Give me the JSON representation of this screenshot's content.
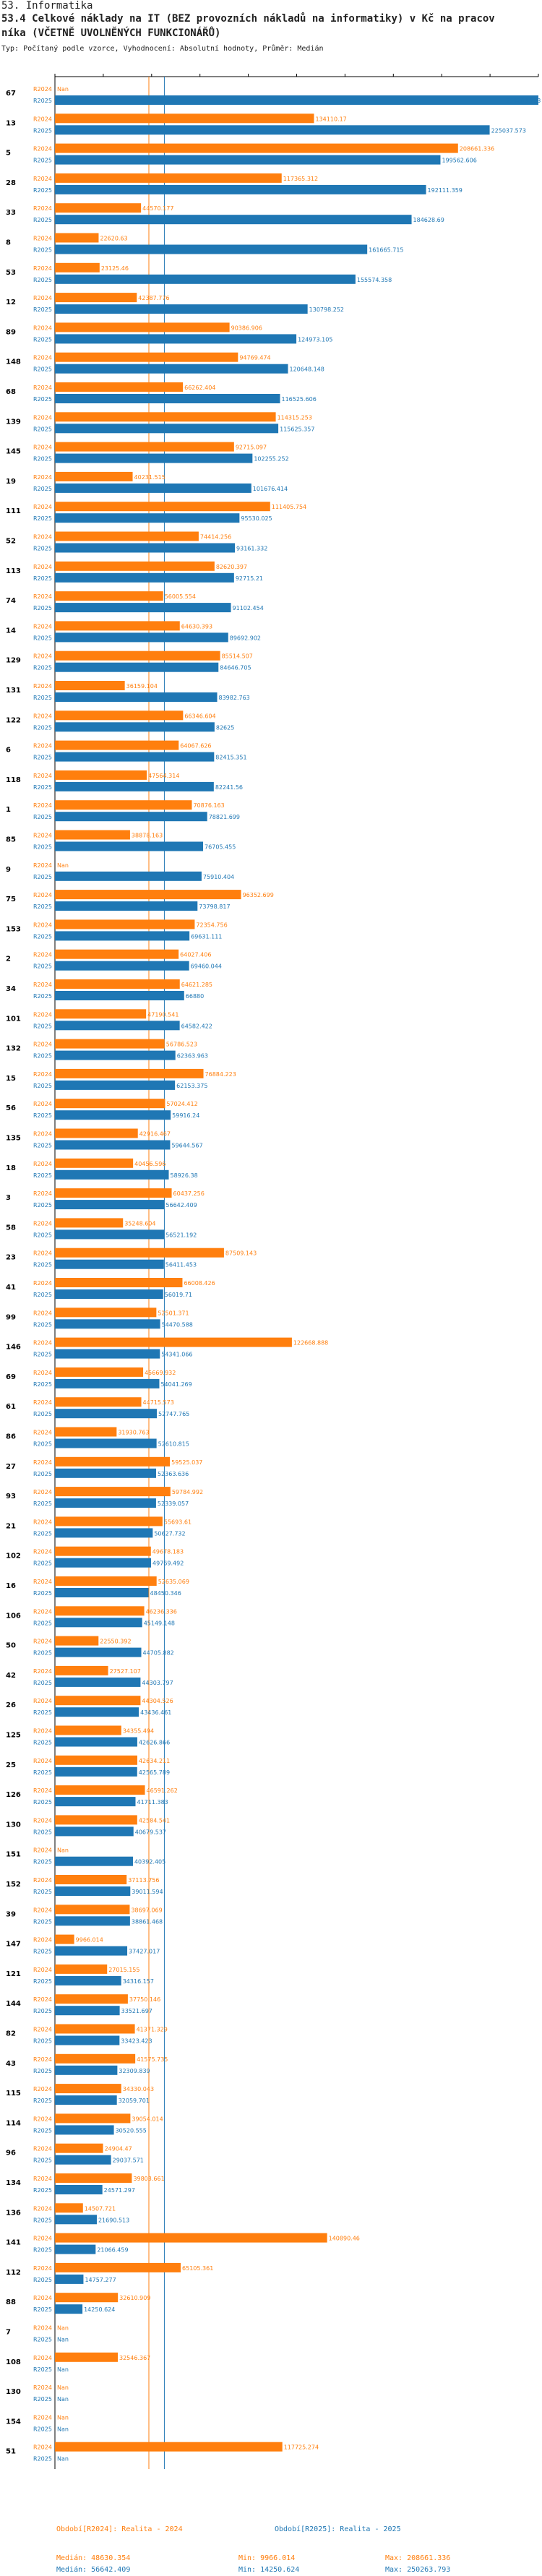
{
  "header": {
    "line1": "53. Informatika",
    "line2": "53.4 Celkové náklady na IT (BEZ provozních nákladů na informatiky) v Kč na pracov",
    "line3": "níka (VČETNĚ UVOLNĚNÝCH FUNKCIONÁŘŮ)",
    "line4": "Typ: Počítaný podle vzorce, Vyhodnocení: Absolutní hodnoty, Průměr: Medián"
  },
  "colors": {
    "r2024": "#ff7f0e",
    "r2025": "#1f77b4",
    "axis": "#000000",
    "medianLine": "#1f77b4"
  },
  "chart_data": {
    "type": "bar",
    "orientation": "horizontal",
    "xlim": [
      0,
      250263.793
    ],
    "series_labels": [
      "R2024",
      "R2025"
    ],
    "na_label": "Nan",
    "groups": [
      {
        "id": "67",
        "v2024": null,
        "v2025": 250263.793,
        "l2024": "Nan",
        "l2025": "250263.793"
      },
      {
        "id": "13",
        "v2024": 134110.17,
        "v2025": 225037.573,
        "l2024": "134110.17",
        "l2025": "225037.573"
      },
      {
        "id": "5",
        "v2024": 208661.336,
        "v2025": 199562.606,
        "l2024": "208661.336",
        "l2025": "199562.606"
      },
      {
        "id": "28",
        "v2024": 117365.312,
        "v2025": 192111.359,
        "l2024": "117365.312",
        "l2025": "192111.359"
      },
      {
        "id": "33",
        "v2024": 44570.177,
        "v2025": 184628.69,
        "l2024": "44570.177",
        "l2025": "184628.69"
      },
      {
        "id": "8",
        "v2024": 22620.63,
        "v2025": 161665.715,
        "l2024": "22620.63",
        "l2025": "161665.715"
      },
      {
        "id": "53",
        "v2024": 23125.46,
        "v2025": 155574.358,
        "l2024": "23125.46",
        "l2025": "155574.358"
      },
      {
        "id": "12",
        "v2024": 42387.776,
        "v2025": 130798.252,
        "l2024": "42387.776",
        "l2025": "130798.252"
      },
      {
        "id": "89",
        "v2024": 90386.906,
        "v2025": 124973.105,
        "l2024": "90386.906",
        "l2025": "124973.105"
      },
      {
        "id": "148",
        "v2024": 94769.474,
        "v2025": 120648.148,
        "l2024": "94769.474",
        "l2025": "120648.148"
      },
      {
        "id": "68",
        "v2024": 66262.404,
        "v2025": 116525.606,
        "l2024": "66262.404",
        "l2025": "116525.606"
      },
      {
        "id": "139",
        "v2024": 114315.253,
        "v2025": 115625.357,
        "l2024": "114315.253",
        "l2025": "115625.357"
      },
      {
        "id": "145",
        "v2024": 92715.097,
        "v2025": 102255.252,
        "l2024": "92715.097",
        "l2025": "102255.252"
      },
      {
        "id": "19",
        "v2024": 40231.515,
        "v2025": 101676.414,
        "l2024": "40231.515",
        "l2025": "101676.414"
      },
      {
        "id": "111",
        "v2024": 111405.754,
        "v2025": 95530.025,
        "l2024": "111405.754",
        "l2025": "95530.025"
      },
      {
        "id": "52",
        "v2024": 74414.256,
        "v2025": 93161.332,
        "l2024": "74414.256",
        "l2025": "93161.332"
      },
      {
        "id": "113",
        "v2024": 82620.397,
        "v2025": 92715.21,
        "l2024": "82620.397",
        "l2025": "92715.21"
      },
      {
        "id": "74",
        "v2024": 56005.554,
        "v2025": 91102.454,
        "l2024": "56005.554",
        "l2025": "91102.454"
      },
      {
        "id": "14",
        "v2024": 64630.393,
        "v2025": 89692.902,
        "l2024": "64630.393",
        "l2025": "89692.902"
      },
      {
        "id": "129",
        "v2024": 85514.507,
        "v2025": 84646.705,
        "l2024": "85514.507",
        "l2025": "84646.705"
      },
      {
        "id": "131",
        "v2024": 36159.104,
        "v2025": 83982.763,
        "l2024": "36159.104",
        "l2025": "83982.763"
      },
      {
        "id": "122",
        "v2024": 66346.604,
        "v2025": 82625,
        "l2024": "66346.604",
        "l2025": "82625"
      },
      {
        "id": "6",
        "v2024": 64067.626,
        "v2025": 82415.351,
        "l2024": "64067.626",
        "l2025": "82415.351"
      },
      {
        "id": "118",
        "v2024": 47564.314,
        "v2025": 82241.56,
        "l2024": "47564.314",
        "l2025": "82241.56"
      },
      {
        "id": "1",
        "v2024": 70876.163,
        "v2025": 78821.699,
        "l2024": "70876.163",
        "l2025": "78821.699"
      },
      {
        "id": "85",
        "v2024": 38878.163,
        "v2025": 76705.455,
        "l2024": "38878.163",
        "l2025": "76705.455"
      },
      {
        "id": "9",
        "v2024": null,
        "v2025": 75910.404,
        "l2024": "Nan",
        "l2025": "75910.404"
      },
      {
        "id": "75",
        "v2024": 96352.699,
        "v2025": 73798.817,
        "l2024": "96352.699",
        "l2025": "73798.817"
      },
      {
        "id": "153",
        "v2024": 72354.756,
        "v2025": 69631.111,
        "l2024": "72354.756",
        "l2025": "69631.111"
      },
      {
        "id": "2",
        "v2024": 64027.406,
        "v2025": 69460.044,
        "l2024": "64027.406",
        "l2025": "69460.044"
      },
      {
        "id": "34",
        "v2024": 64621.285,
        "v2025": 66880,
        "l2024": "64621.285",
        "l2025": "66880"
      },
      {
        "id": "101",
        "v2024": 47190.541,
        "v2025": 64582.422,
        "l2024": "47190.541",
        "l2025": "64582.422"
      },
      {
        "id": "132",
        "v2024": 56786.523,
        "v2025": 62363.963,
        "l2024": "56786.523",
        "l2025": "62363.963"
      },
      {
        "id": "15",
        "v2024": 76884.223,
        "v2025": 62153.375,
        "l2024": "76884.223",
        "l2025": "62153.375"
      },
      {
        "id": "56",
        "v2024": 57024.412,
        "v2025": 59916.24,
        "l2024": "57024.412",
        "l2025": "59916.24"
      },
      {
        "id": "135",
        "v2024": 42916.467,
        "v2025": 59644.567,
        "l2024": "42916.467",
        "l2025": "59644.567"
      },
      {
        "id": "18",
        "v2024": 40456.596,
        "v2025": 58926.38,
        "l2024": "40456.596",
        "l2025": "58926.38"
      },
      {
        "id": "3",
        "v2024": 60437.256,
        "v2025": 56642.409,
        "l2024": "60437.256",
        "l2025": "56642.409"
      },
      {
        "id": "58",
        "v2024": 35248.604,
        "v2025": 56521.192,
        "l2024": "35248.604",
        "l2025": "56521.192"
      },
      {
        "id": "23",
        "v2024": 87509.143,
        "v2025": 56411.453,
        "l2024": "87509.143",
        "l2025": "56411.453"
      },
      {
        "id": "41",
        "v2024": 66008.426,
        "v2025": 56019.71,
        "l2024": "66008.426",
        "l2025": "56019.71"
      },
      {
        "id": "99",
        "v2024": 52501.371,
        "v2025": 54470.588,
        "l2024": "52501.371",
        "l2025": "54470.588"
      },
      {
        "id": "146",
        "v2024": 122668.888,
        "v2025": 54341.066,
        "l2024": "122668.888",
        "l2025": "54341.066"
      },
      {
        "id": "69",
        "v2024": 45669.932,
        "v2025": 54041.269,
        "l2024": "45669.932",
        "l2025": "54041.269"
      },
      {
        "id": "61",
        "v2024": 44715.573,
        "v2025": 52747.765,
        "l2024": "44715.573",
        "l2025": "52747.765"
      },
      {
        "id": "86",
        "v2024": 31930.763,
        "v2025": 52610.815,
        "l2024": "31930.763",
        "l2025": "52610.815"
      },
      {
        "id": "27",
        "v2024": 59525.037,
        "v2025": 52363.636,
        "l2024": "59525.037",
        "l2025": "52363.636"
      },
      {
        "id": "93",
        "v2024": 59784.992,
        "v2025": 52339.057,
        "l2024": "59784.992",
        "l2025": "52339.057"
      },
      {
        "id": "21",
        "v2024": 55693.61,
        "v2025": 50627.732,
        "l2024": "55693.61",
        "l2025": "50627.732"
      },
      {
        "id": "102",
        "v2024": 49678.183,
        "v2025": 49769.492,
        "l2024": "49678.183",
        "l2025": "49769.492"
      },
      {
        "id": "16",
        "v2024": 52635.069,
        "v2025": 48450.346,
        "l2024": "52635.069",
        "l2025": "48450.346"
      },
      {
        "id": "106",
        "v2024": 46236.336,
        "v2025": 45149.148,
        "l2024": "46236.336",
        "l2025": "45149.148"
      },
      {
        "id": "50",
        "v2024": 22550.392,
        "v2025": 44705.882,
        "l2024": "22550.392",
        "l2025": "44705.882"
      },
      {
        "id": "42",
        "v2024": 27527.107,
        "v2025": 44303.797,
        "l2024": "27527.107",
        "l2025": "44303.797"
      },
      {
        "id": "26",
        "v2024": 44304.526,
        "v2025": 43436.461,
        "l2024": "44304.526",
        "l2025": "43436.461"
      },
      {
        "id": "125",
        "v2024": 34355.494,
        "v2025": 42626.866,
        "l2024": "34355.494",
        "l2025": "42626.866"
      },
      {
        "id": "25",
        "v2024": 42634.211,
        "v2025": 42565.789,
        "l2024": "42634.211",
        "l2025": "42565.789"
      },
      {
        "id": "126",
        "v2024": 46591.262,
        "v2025": 41711.383,
        "l2024": "46591.262",
        "l2025": "41711.383"
      },
      {
        "id": "130",
        "v2024": 42584.541,
        "v2025": 40679.537,
        "l2024": "42584.541",
        "l2025": "40679.537"
      },
      {
        "id": "151",
        "v2024": null,
        "v2025": 40392.405,
        "l2024": "Nan",
        "l2025": "40392.405"
      },
      {
        "id": "152",
        "v2024": 37113.756,
        "v2025": 39011.594,
        "l2024": "37113.756",
        "l2025": "39011.594"
      },
      {
        "id": "39",
        "v2024": 38697.069,
        "v2025": 38861.468,
        "l2024": "38697.069",
        "l2025": "38861.468"
      },
      {
        "id": "147",
        "v2024": 9966.014,
        "v2025": 37427.017,
        "l2024": "9966.014",
        "l2025": "37427.017"
      },
      {
        "id": "121",
        "v2024": 27015.155,
        "v2025": 34316.157,
        "l2024": "27015.155",
        "l2025": "34316.157"
      },
      {
        "id": "144",
        "v2024": 37750.146,
        "v2025": 33521.697,
        "l2024": "37750.146",
        "l2025": "33521.697"
      },
      {
        "id": "82",
        "v2024": 41371.329,
        "v2025": 33423.423,
        "l2024": "41371.329",
        "l2025": "33423.423"
      },
      {
        "id": "43",
        "v2024": 41575.735,
        "v2025": 32309.839,
        "l2024": "41575.735",
        "l2025": "32309.839"
      },
      {
        "id": "115",
        "v2024": 34330.043,
        "v2025": 32059.701,
        "l2024": "34330.043",
        "l2025": "32059.701"
      },
      {
        "id": "114",
        "v2024": 39054.014,
        "v2025": 30520.555,
        "l2024": "39054.014",
        "l2025": "30520.555"
      },
      {
        "id": "96",
        "v2024": 24904.47,
        "v2025": 29037.571,
        "l2024": "24904.47",
        "l2025": "29037.571"
      },
      {
        "id": "134",
        "v2024": 39803.661,
        "v2025": 24571.297,
        "l2024": "39803.661",
        "l2025": "24571.297"
      },
      {
        "id": "136",
        "v2024": 14507.721,
        "v2025": 21690.513,
        "l2024": "14507.721",
        "l2025": "21690.513"
      },
      {
        "id": "141",
        "v2024": 140890.46,
        "v2025": 21066.459,
        "l2024": "140890.46",
        "l2025": "21066.459"
      },
      {
        "id": "112",
        "v2024": 65105.361,
        "v2025": 14757.277,
        "l2024": "65105.361",
        "l2025": "14757.277"
      },
      {
        "id": "88",
        "v2024": 32610.909,
        "v2025": 14250.624,
        "l2024": "32610.909",
        "l2025": "14250.624"
      },
      {
        "id": "7",
        "v2024": null,
        "v2025": null,
        "l2024": "Nan",
        "l2025": "Nan"
      },
      {
        "id": "108",
        "v2024": 32546.367,
        "v2025": null,
        "l2024": "32546.367",
        "l2025": "Nan"
      },
      {
        "id": "130",
        "v2024": null,
        "v2025": null,
        "l2024": "Nan",
        "l2025": "Nan"
      },
      {
        "id": "154",
        "v2024": null,
        "v2025": null,
        "l2024": "Nan",
        "l2025": "Nan"
      },
      {
        "id": "51",
        "v2024": 117725.274,
        "v2025": null,
        "l2024": "117725.274",
        "l2025": "Nan"
      }
    ],
    "medians": {
      "r2024": 48630.354,
      "r2025": 56642.409
    }
  },
  "legend": {
    "r2024_title": "Období[R2024]: Realita - 2024",
    "r2025_title": "Období[R2025]: Realita - 2025",
    "r2024_median": "Medián: 48630.354",
    "r2024_min": "Min: 9966.014",
    "r2024_max": "Max: 208661.336",
    "r2025_median": "Medián: 56642.409",
    "r2025_min": "Min: 14250.624",
    "r2025_max": "Max: 250263.793"
  }
}
